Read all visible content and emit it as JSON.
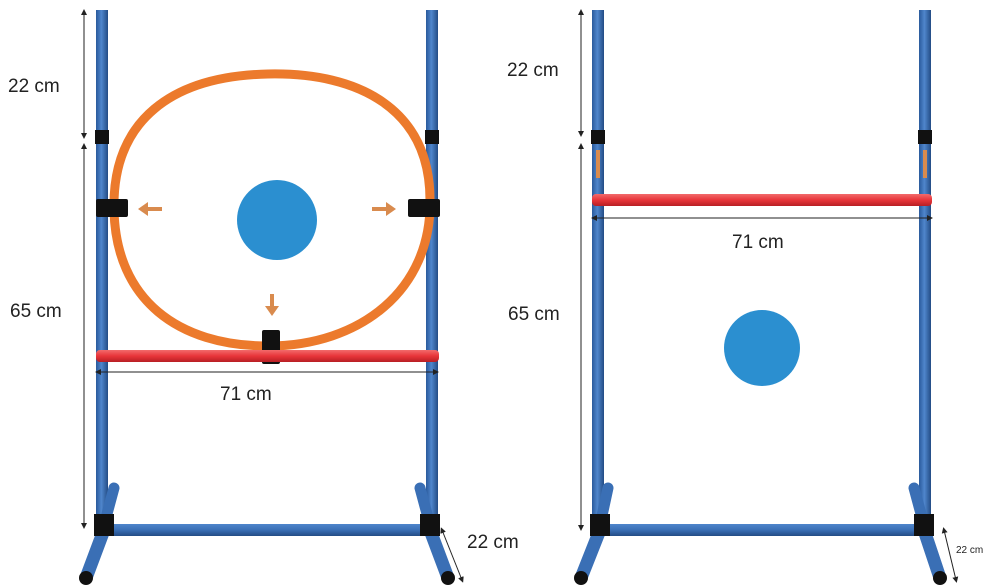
{
  "left_frame": {
    "top_height": "22 cm",
    "main_height": "65 cm",
    "bar_width": "71 cm",
    "base_depth": "22 cm"
  },
  "right_frame": {
    "top_height": "22 cm",
    "main_height": "65 cm",
    "bar_width": "71 cm",
    "base_depth": "22 cm"
  },
  "colors": {
    "pole": "#3a6fb5",
    "pole_dark": "#274f86",
    "hoop": "#ec7a2c",
    "bar_red": "#e8353a",
    "target": "#2b8fd0",
    "arrow": "#d98b4e",
    "clamp": "#111111"
  },
  "icons": [
    "target-dot-icon",
    "arrow-left-icon",
    "arrow-right-icon",
    "arrow-down-icon"
  ]
}
